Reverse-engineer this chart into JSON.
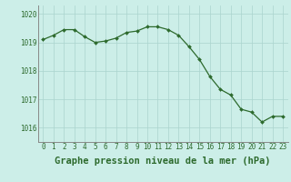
{
  "x": [
    0,
    1,
    2,
    3,
    4,
    5,
    6,
    7,
    8,
    9,
    10,
    11,
    12,
    13,
    14,
    15,
    16,
    17,
    18,
    19,
    20,
    21,
    22,
    23
  ],
  "y": [
    1019.1,
    1019.25,
    1019.45,
    1019.45,
    1019.2,
    1019.0,
    1019.05,
    1019.15,
    1019.35,
    1019.4,
    1019.55,
    1019.55,
    1019.45,
    1019.25,
    1018.85,
    1018.4,
    1017.8,
    1017.35,
    1017.15,
    1016.65,
    1016.55,
    1016.2,
    1016.4,
    1016.4
  ],
  "line_color": "#2d6a2d",
  "marker_color": "#2d6a2d",
  "bg_color": "#cceee8",
  "grid_color": "#aad4ce",
  "tick_label_color": "#2d6a2d",
  "xlabel": "Graphe pression niveau de la mer (hPa)",
  "ylim_min": 1015.5,
  "ylim_max": 1020.3,
  "yticks": [
    1016,
    1017,
    1018,
    1019,
    1020
  ],
  "tick_fontsize": 5.5,
  "xlabel_fontsize": 7.5
}
